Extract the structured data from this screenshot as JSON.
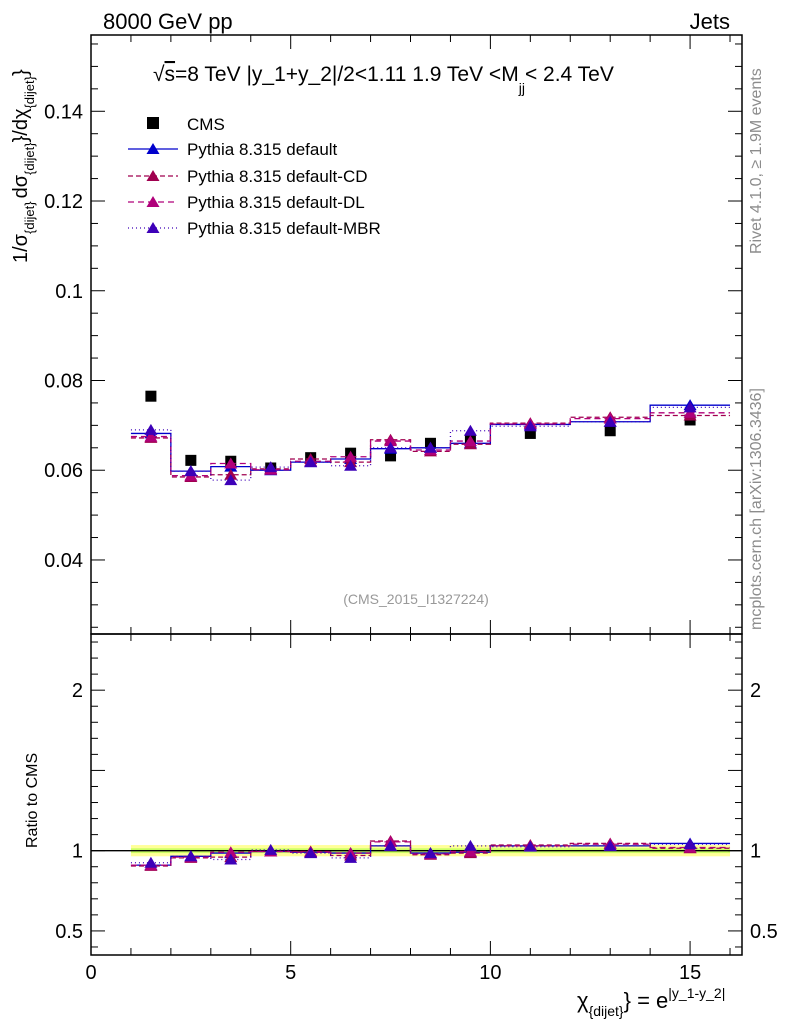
{
  "header": {
    "left": "8000 GeV pp",
    "right": "Jets"
  },
  "side_labels": {
    "rivet": "Rivet 4.1.0, ≥ 1.9M events",
    "mcplots": "mcplots.cern.ch [arXiv:1306.3436]"
  },
  "colors": {
    "cms": "#000000",
    "default": "#0000cc",
    "cd": "#a0004f",
    "dl": "#b0007a",
    "mbr": "#3d00b8",
    "band_inner": "#ccff66",
    "band_outer": "#ffff99"
  },
  "chart_data": [
    {
      "type": "scatter",
      "panel": "main",
      "title": "√s=8 TeV |y_1+y_2|/2<1.11 1.9 TeV <M_jj< 2.4 TeV",
      "title_parts": {
        "sqrt": "√",
        "s_expr": "s",
        "text1": "=8 TeV |y_1+y_2|/2<1.11 1.9 TeV <M",
        "sub": "jj",
        "text2": "< 2.4 TeV"
      },
      "ylabel": "1/σ_{dijet} dσ_{dijet}/dχ_{dijet}",
      "ylabel_parts": {
        "a": "1/σ",
        "asub": "{dijet}",
        "b": "dσ",
        "bsub": "{dijet}",
        "c": "}/dχ",
        "csub": "{dijet}",
        "d": "}"
      },
      "watermark": "(CMS_2015_I1327224)",
      "xlim": [
        0,
        16.3
      ],
      "ylim": [
        0.0235,
        0.157
      ],
      "yticks": [
        {
          "v": 0.04,
          "label": "0.04"
        },
        {
          "v": 0.06,
          "label": "0.06"
        },
        {
          "v": 0.08,
          "label": "0.08"
        },
        {
          "v": 0.1,
          "label": "0.1"
        },
        {
          "v": 0.12,
          "label": "0.12"
        },
        {
          "v": 0.14,
          "label": "0.14"
        }
      ],
      "x": [
        1.5,
        2.5,
        3.5,
        4.5,
        5.5,
        6.5,
        7.5,
        8.5,
        9.5,
        11.0,
        13.0,
        15.0
      ],
      "xerr": [
        0.5,
        0.5,
        0.5,
        0.5,
        0.5,
        0.5,
        0.5,
        0.5,
        0.5,
        1.0,
        1.0,
        1.0
      ],
      "series": [
        {
          "name": "CMS",
          "key": "cms",
          "marker": "square",
          "values": [
            0.0765,
            0.0622,
            0.062,
            0.0605,
            0.0628,
            0.0638,
            0.0632,
            0.066,
            0.0668,
            0.0682,
            0.0688,
            0.0712
          ]
        },
        {
          "name": "Pythia 8.315 default",
          "key": "default",
          "marker": "triangle",
          "dash": "",
          "values": [
            0.0682,
            0.0598,
            0.0608,
            0.06,
            0.0618,
            0.0625,
            0.0648,
            0.065,
            0.066,
            0.0702,
            0.0708,
            0.0745
          ]
        },
        {
          "name": "Pythia 8.315 default-CD",
          "key": "cd",
          "marker": "triangle",
          "dash": "5,3",
          "values": [
            0.0672,
            0.0585,
            0.059,
            0.0603,
            0.0625,
            0.0618,
            0.0668,
            0.0642,
            0.0658,
            0.0705,
            0.0718,
            0.0722
          ]
        },
        {
          "name": "Pythia 8.315 default-DL",
          "key": "dl",
          "marker": "triangle",
          "dash": "6,4",
          "values": [
            0.0675,
            0.0588,
            0.0615,
            0.0601,
            0.062,
            0.063,
            0.0665,
            0.0645,
            0.0665,
            0.0703,
            0.0715,
            0.0728
          ]
        },
        {
          "name": "Pythia 8.315 default-MBR",
          "key": "mbr",
          "marker": "triangle",
          "dash": "1,3",
          "values": [
            0.069,
            0.0598,
            0.0578,
            0.0607,
            0.0618,
            0.061,
            0.065,
            0.065,
            0.0688,
            0.0698,
            0.0708,
            0.074
          ]
        }
      ]
    },
    {
      "type": "scatter",
      "panel": "ratio",
      "ylabel": "Ratio to CMS",
      "xlabel_parts": {
        "chi": "χ",
        "chisub": "{dijet}",
        "mid": "} = e",
        "exp": "|y_1-y_2|"
      },
      "xlim": [
        0,
        16.3
      ],
      "ylim": [
        0.35,
        2.35
      ],
      "yticks": [
        {
          "v": 0.5,
          "label": "0.5"
        },
        {
          "v": 1,
          "label": "1"
        },
        {
          "v": 2,
          "label": "2"
        }
      ],
      "xticks": [
        {
          "v": 0,
          "label": "0"
        },
        {
          "v": 5,
          "label": "5"
        },
        {
          "v": 10,
          "label": "10"
        },
        {
          "v": 15,
          "label": "15"
        }
      ],
      "band_inner": 0.015,
      "band_outer": 0.035,
      "series": [
        {
          "name": "Pythia 8.315 default",
          "key": "default",
          "values": [
            0.91,
            0.965,
            0.985,
            0.995,
            0.99,
            0.985,
            1.03,
            0.985,
            0.99,
            1.03,
            1.03,
            1.045
          ]
        },
        {
          "name": "Pythia 8.315 default-CD",
          "key": "cd",
          "values": [
            0.905,
            0.955,
            0.96,
            0.995,
            0.995,
            0.97,
            1.06,
            0.975,
            0.985,
            1.035,
            1.045,
            1.015
          ]
        },
        {
          "name": "Pythia 8.315 default-DL",
          "key": "dl",
          "values": [
            0.91,
            0.96,
            0.99,
            0.995,
            0.99,
            0.985,
            1.055,
            0.98,
            0.995,
            1.03,
            1.04,
            1.02
          ]
        },
        {
          "name": "Pythia 8.315 default-MBR",
          "key": "mbr",
          "values": [
            0.925,
            0.965,
            0.945,
            1.005,
            0.985,
            0.955,
            1.03,
            0.985,
            1.03,
            1.025,
            1.03,
            1.04
          ]
        }
      ]
    }
  ]
}
